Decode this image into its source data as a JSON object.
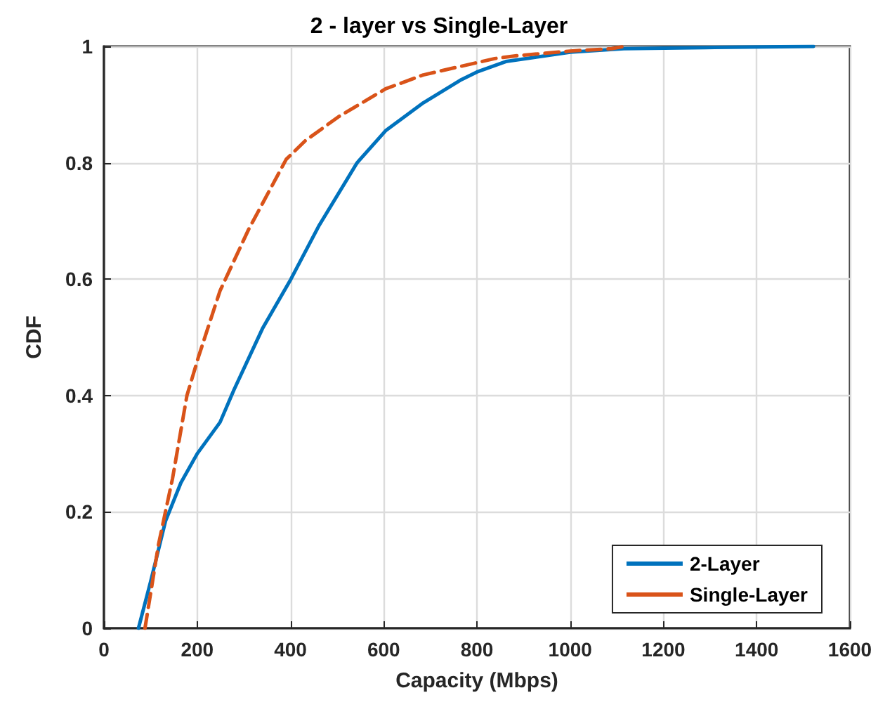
{
  "chart_data": {
    "type": "line",
    "title": "2 - layer vs Single-Layer",
    "xlabel": "Capacity (Mbps)",
    "ylabel": "CDF",
    "xlim": [
      0,
      1600
    ],
    "xticks": [
      0,
      200,
      400,
      600,
      800,
      1000,
      1200,
      1400,
      1600
    ],
    "ylim": [
      0,
      1
    ],
    "yticks": [
      0,
      0.2,
      0.4,
      0.6,
      0.8,
      1
    ],
    "grid": true,
    "legend": "bottom right",
    "marker": "none",
    "series": [
      {
        "name": "2-Layer",
        "color": "#0072bd",
        "line_style": "solid",
        "x": [
          74,
          100,
          132,
          165,
          200,
          249,
          279,
          340,
          401,
          462,
          543,
          604,
          685,
          767,
          800,
          862,
          1000,
          1115,
          1290,
          1522
        ],
        "values": [
          0,
          0.08,
          0.184,
          0.25,
          0.3,
          0.354,
          0.41,
          0.515,
          0.6,
          0.693,
          0.8,
          0.855,
          0.903,
          0.943,
          0.956,
          0.974,
          0.99,
          0.996,
          0.998,
          1
        ]
      },
      {
        "name": "Single-Layer",
        "color": "#d95319",
        "line_style": "dashed",
        "x": [
          88,
          117,
          147,
          178,
          203,
          249,
          310,
          391,
          432,
          503,
          604,
          685,
          838,
          886,
          1000,
          1089,
          1116
        ],
        "values": [
          0,
          0.144,
          0.257,
          0.4,
          0.467,
          0.58,
          0.685,
          0.806,
          0.838,
          0.879,
          0.927,
          0.951,
          0.979,
          0.984,
          0.992,
          0.996,
          1
        ]
      }
    ]
  }
}
